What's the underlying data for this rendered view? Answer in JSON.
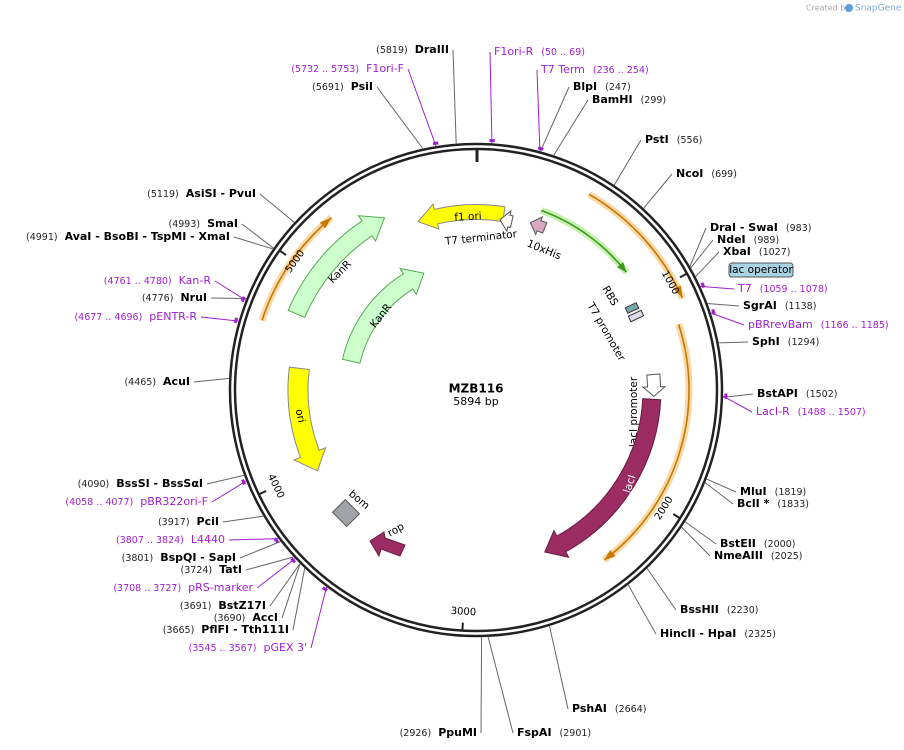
{
  "header": {
    "credit": "Created by",
    "brand": "SnapGene"
  },
  "map": {
    "name": "MZB116",
    "length": "5894 bp",
    "ticks": [
      1000,
      2000,
      3000,
      4000,
      5000
    ]
  },
  "features": [
    {
      "label": "f1 ori"
    },
    {
      "label": "T7 terminator"
    },
    {
      "label": "10xHis"
    },
    {
      "label": "lac operator"
    },
    {
      "label": "RBS"
    },
    {
      "label": "T7 promoter"
    },
    {
      "label": "lacI promoter"
    },
    {
      "label": "lacI"
    },
    {
      "label": "KanR"
    },
    {
      "label": "KanR"
    },
    {
      "label": "ori"
    },
    {
      "label": "bom"
    },
    {
      "label": "rop"
    }
  ],
  "sites": [
    {
      "name": "DraIII",
      "position": "(5819)"
    },
    {
      "name": "PsiI",
      "position": "(5691)"
    },
    {
      "name": "BlpI",
      "position": "(247)"
    },
    {
      "name": "BamHI",
      "position": "(299)"
    },
    {
      "name": "PstI",
      "position": "(556)"
    },
    {
      "name": "NcoI",
      "position": "(699)"
    },
    {
      "name": "DraI - SwaI",
      "position": "(983)"
    },
    {
      "name": "NdeI",
      "position": "(989)"
    },
    {
      "name": "XbaI",
      "position": "(1027)"
    },
    {
      "name": "SgrAI",
      "position": "(1138)"
    },
    {
      "name": "SphI",
      "position": "(1294)"
    },
    {
      "name": "BstAPI",
      "position": "(1502)"
    },
    {
      "name": "MluI",
      "position": "(1819)"
    },
    {
      "name": "BclI *",
      "position": "(1833)"
    },
    {
      "name": "BstEII",
      "position": "(2000)"
    },
    {
      "name": "NmeAIII",
      "position": "(2025)"
    },
    {
      "name": "BssHII",
      "position": "(2230)"
    },
    {
      "name": "HincII - HpaI",
      "position": "(2325)"
    },
    {
      "name": "PshAI",
      "position": "(2664)"
    },
    {
      "name": "FspAI",
      "position": "(2901)"
    },
    {
      "name": "PpuMI",
      "position": "(2926)"
    },
    {
      "name": "PflFI - Tth111I",
      "position": "(3665)"
    },
    {
      "name": "AccI",
      "position": "(3690)"
    },
    {
      "name": "BstZ17I",
      "position": "(3691)"
    },
    {
      "name": "TatI",
      "position": "(3724)"
    },
    {
      "name": "BspQI - SapI",
      "position": "(3801)"
    },
    {
      "name": "PciI",
      "position": "(3917)"
    },
    {
      "name": "BssSI - BssSαI",
      "position": "(4090)"
    },
    {
      "name": "AcuI",
      "position": "(4465)"
    },
    {
      "name": "NruI",
      "position": "(4776)"
    },
    {
      "name": "AvaI - BsoBI - TspMI - XmaI",
      "position": "(4991)"
    },
    {
      "name": "SmaI",
      "position": "(4993)"
    },
    {
      "name": "AsiSI - PvuI",
      "position": "(5119)"
    }
  ],
  "primers": [
    {
      "name": "F1ori-R",
      "range": "(50 .. 69)"
    },
    {
      "name": "T7 Term",
      "range": "(236 .. 254)"
    },
    {
      "name": "F1ori-F",
      "range": "(5732 .. 5753)"
    },
    {
      "name": "T7",
      "range": "(1059 .. 1078)"
    },
    {
      "name": "pBRrevBam",
      "range": "(1166 .. 1185)"
    },
    {
      "name": "LacI-R",
      "range": "(1488 .. 1507)"
    },
    {
      "name": "Kan-R",
      "range": "(4761 .. 4780)"
    },
    {
      "name": "pENTR-R",
      "range": "(4677 .. 4696)"
    },
    {
      "name": "pBR322ori-F",
      "range": "(4058 .. 4077)"
    },
    {
      "name": "L4440",
      "range": "(3807 .. 3824)"
    },
    {
      "name": "pRS-marker",
      "range": "(3708 .. 3727)"
    },
    {
      "name": "pGEX 3'",
      "range": "(3545 .. 3567)"
    }
  ]
}
